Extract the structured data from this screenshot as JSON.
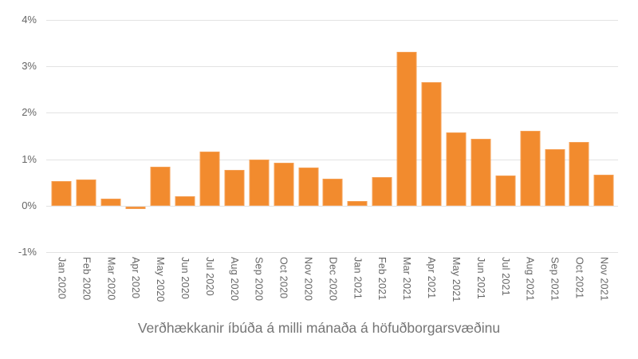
{
  "chart_data": {
    "type": "bar",
    "title": "Verðhækkanir íbúða á milli mánaða á höfuðborgarsvæðinu",
    "xlabel": "",
    "ylabel": "",
    "categories": [
      "Jan 2020",
      "Feb 2020",
      "Mar 2020",
      "Apr 2020",
      "May 2020",
      "Jun 2020",
      "Jul 2020",
      "Aug 2020",
      "Sep 2020",
      "Oct 2020",
      "Nov 2020",
      "Dec 2020",
      "Jan 2021",
      "Feb 2021",
      "Mar 2021",
      "Apr 2021",
      "May 2021",
      "Jun 2021",
      "Jul 2021",
      "Aug 2021",
      "Sep 2021",
      "Oct 2021",
      "Nov 2021"
    ],
    "values": [
      0.53,
      0.57,
      0.15,
      -0.05,
      0.84,
      0.2,
      1.16,
      0.78,
      1.0,
      0.93,
      0.82,
      0.59,
      0.1,
      0.61,
      3.32,
      2.67,
      1.58,
      1.44,
      0.65,
      1.61,
      1.22,
      1.38,
      0.67
    ],
    "y_ticks": [
      "4%",
      "3%",
      "2%",
      "1%",
      "0%",
      "-1%"
    ],
    "ylim": [
      -1,
      4
    ],
    "grid": "horizontal",
    "legend": "none",
    "colors": {
      "bar": "#f28b2e",
      "bar_edge": "#f5a055",
      "gridline": "#e3e3e3",
      "axis_text": "#666666",
      "title_text": "#757575",
      "background": "#ffffff"
    }
  }
}
